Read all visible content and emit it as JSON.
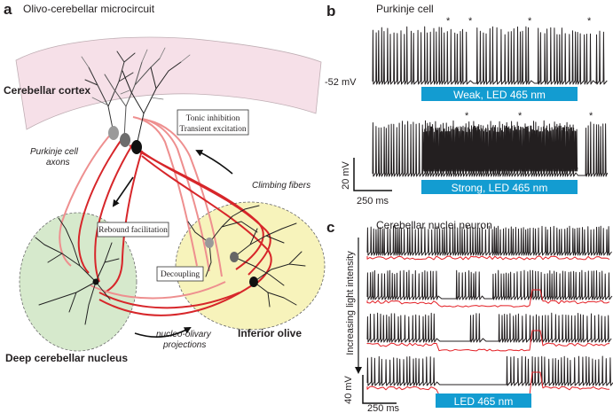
{
  "colors": {
    "red_axon": "#d7262a",
    "pink_axon": "#ee8f8f",
    "led_blue": "#139cd1",
    "cortex_fill": "#f6dde6",
    "dcn_fill": "#cfe6c4",
    "io_fill": "#f7f2b4",
    "trace_red": "#e31e24"
  },
  "panel_a": {
    "letter": "a",
    "title": "Olivo-cerebellar microcircuit",
    "cerebellar_cortex": "Cerebellar cortex",
    "box_inhibition_line1": "Tonic inhibition",
    "box_inhibition_line2": "Transient excitation",
    "purkinje_axons_line1": "Purkinje cell",
    "purkinje_axons_line2": "axons",
    "climbing_fibers": "Climbing fibers",
    "rebound_facilitation": "Rebound facilitation",
    "decoupling": "Decoupling",
    "inferior_olive": "Inferior olive",
    "deep_cerebellar_nucleus": "Deep cerebellar nucleus",
    "nucleo_line1": "nucleo-olivary",
    "nucleo_line2": "projections"
  },
  "panel_b": {
    "letter": "b",
    "title": "Purkinje cell",
    "voltage_label": "-52 mV",
    "weak_led": "Weak, LED 465 nm",
    "strong_led": "Strong, LED 465 nm",
    "scale_voltage": "20 mV",
    "scale_time": "250 ms",
    "asterisk": "*",
    "weak_complex_spikes": 4,
    "strong_complex_spikes": 3
  },
  "panel_c": {
    "letter": "c",
    "title": "Cerebellar nuclei neuron",
    "intensity_label": "Increasing light intensity",
    "led": "LED 465 nm",
    "scale_voltage": "40 mV",
    "scale_time": "250 ms"
  }
}
